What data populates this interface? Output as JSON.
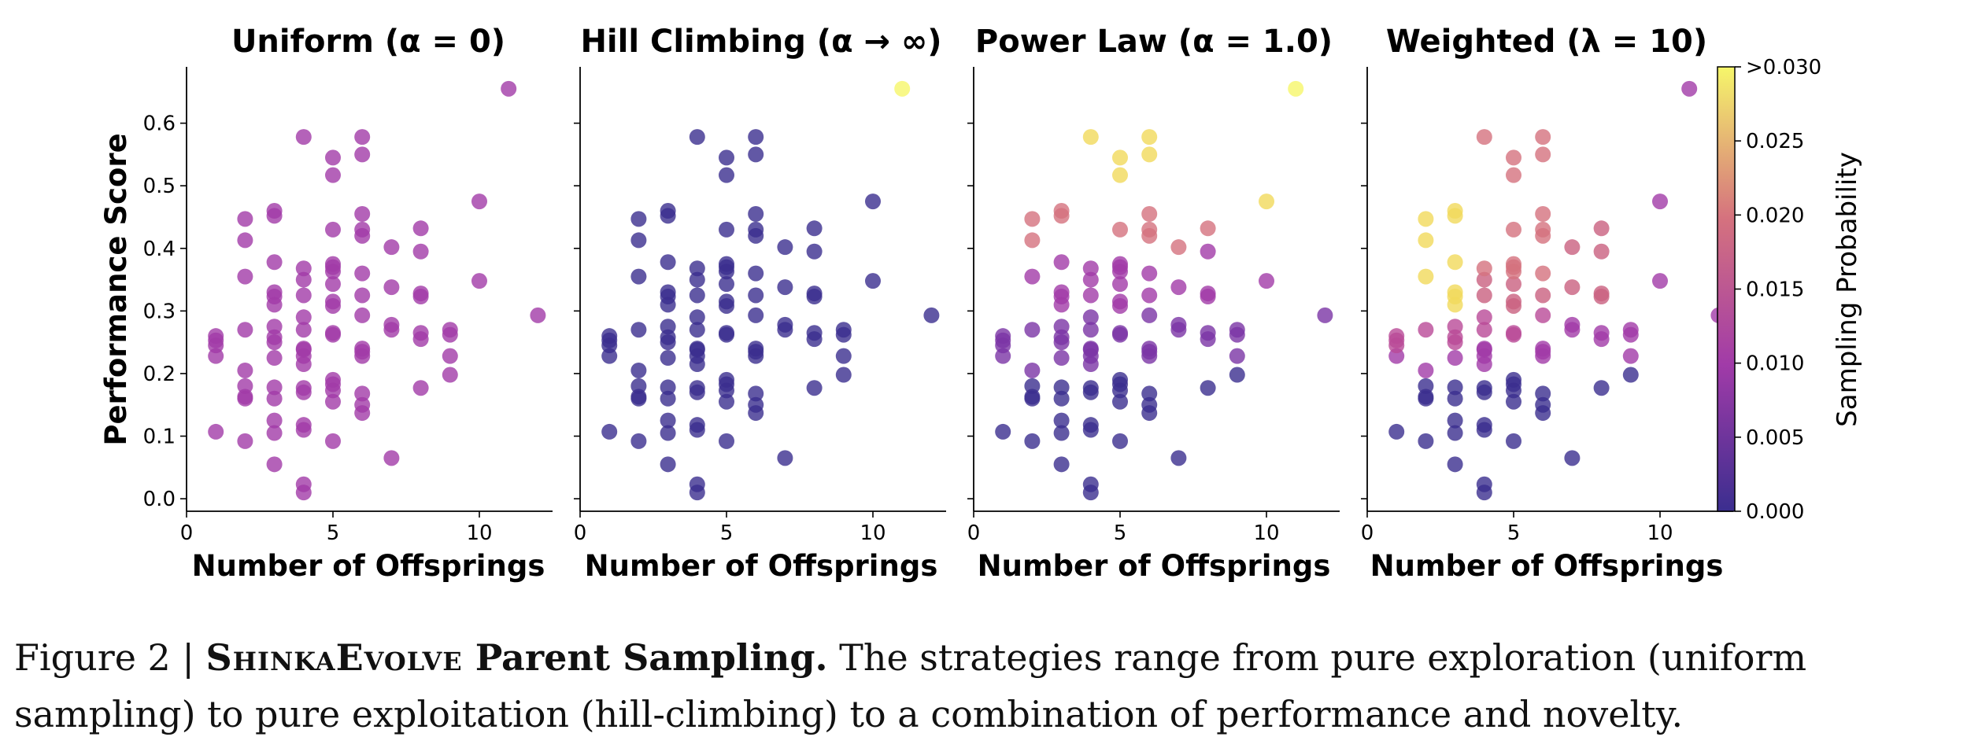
{
  "chart_data": {
    "type": "scatter",
    "shared_xlabel": "Number of Offsprings",
    "shared_ylabel": "Performance Score",
    "xlim": [
      0,
      12.5
    ],
    "ylim": [
      -0.02,
      0.69
    ],
    "xticks": [
      "0",
      "5",
      "10"
    ],
    "xtick_values": [
      0,
      5,
      10
    ],
    "yticks": [
      "0.0",
      "0.1",
      "0.2",
      "0.3",
      "0.4",
      "0.5",
      "0.6"
    ],
    "ytick_values": [
      0,
      0.1,
      0.2,
      0.3,
      0.4,
      0.5,
      0.6
    ],
    "grid": false,
    "colormap": "plasma",
    "colors": {
      "low": "#3b2e8f",
      "mid": "#a13ba8",
      "mid_high": "#d5727e",
      "high": "#f1d95b",
      "top": "#f6f66a"
    },
    "points": [
      {
        "x": 1,
        "y": 0.107
      },
      {
        "x": 1,
        "y": 0.228
      },
      {
        "x": 1,
        "y": 0.245
      },
      {
        "x": 1,
        "y": 0.253
      },
      {
        "x": 1,
        "y": 0.26
      },
      {
        "x": 2,
        "y": 0.092
      },
      {
        "x": 2,
        "y": 0.16
      },
      {
        "x": 2,
        "y": 0.163
      },
      {
        "x": 2,
        "y": 0.18
      },
      {
        "x": 2,
        "y": 0.205
      },
      {
        "x": 2,
        "y": 0.27
      },
      {
        "x": 2,
        "y": 0.355
      },
      {
        "x": 2,
        "y": 0.413
      },
      {
        "x": 2,
        "y": 0.447
      },
      {
        "x": 3,
        "y": 0.055
      },
      {
        "x": 3,
        "y": 0.105
      },
      {
        "x": 3,
        "y": 0.125
      },
      {
        "x": 3,
        "y": 0.16
      },
      {
        "x": 3,
        "y": 0.178
      },
      {
        "x": 3,
        "y": 0.225
      },
      {
        "x": 3,
        "y": 0.25
      },
      {
        "x": 3,
        "y": 0.258
      },
      {
        "x": 3,
        "y": 0.275
      },
      {
        "x": 3,
        "y": 0.31
      },
      {
        "x": 3,
        "y": 0.323
      },
      {
        "x": 3,
        "y": 0.33
      },
      {
        "x": 3,
        "y": 0.378
      },
      {
        "x": 3,
        "y": 0.452
      },
      {
        "x": 3,
        "y": 0.46
      },
      {
        "x": 4,
        "y": 0.01
      },
      {
        "x": 4,
        "y": 0.023
      },
      {
        "x": 4,
        "y": 0.11
      },
      {
        "x": 4,
        "y": 0.118
      },
      {
        "x": 4,
        "y": 0.17
      },
      {
        "x": 4,
        "y": 0.177
      },
      {
        "x": 4,
        "y": 0.215
      },
      {
        "x": 4,
        "y": 0.228
      },
      {
        "x": 4,
        "y": 0.238
      },
      {
        "x": 4,
        "y": 0.24
      },
      {
        "x": 4,
        "y": 0.27
      },
      {
        "x": 4,
        "y": 0.29
      },
      {
        "x": 4,
        "y": 0.325
      },
      {
        "x": 4,
        "y": 0.35
      },
      {
        "x": 4,
        "y": 0.368
      },
      {
        "x": 4,
        "y": 0.578
      },
      {
        "x": 5,
        "y": 0.092
      },
      {
        "x": 5,
        "y": 0.155
      },
      {
        "x": 5,
        "y": 0.173
      },
      {
        "x": 5,
        "y": 0.183
      },
      {
        "x": 5,
        "y": 0.19
      },
      {
        "x": 5,
        "y": 0.262
      },
      {
        "x": 5,
        "y": 0.265
      },
      {
        "x": 5,
        "y": 0.308
      },
      {
        "x": 5,
        "y": 0.315
      },
      {
        "x": 5,
        "y": 0.343
      },
      {
        "x": 5,
        "y": 0.363
      },
      {
        "x": 5,
        "y": 0.37
      },
      {
        "x": 5,
        "y": 0.375
      },
      {
        "x": 5,
        "y": 0.43
      },
      {
        "x": 5,
        "y": 0.517
      },
      {
        "x": 5,
        "y": 0.545
      },
      {
        "x": 6,
        "y": 0.137
      },
      {
        "x": 6,
        "y": 0.15
      },
      {
        "x": 6,
        "y": 0.168
      },
      {
        "x": 6,
        "y": 0.228
      },
      {
        "x": 6,
        "y": 0.235
      },
      {
        "x": 6,
        "y": 0.24
      },
      {
        "x": 6,
        "y": 0.293
      },
      {
        "x": 6,
        "y": 0.325
      },
      {
        "x": 6,
        "y": 0.36
      },
      {
        "x": 6,
        "y": 0.42
      },
      {
        "x": 6,
        "y": 0.43
      },
      {
        "x": 6,
        "y": 0.455
      },
      {
        "x": 6,
        "y": 0.55
      },
      {
        "x": 6,
        "y": 0.578
      },
      {
        "x": 7,
        "y": 0.065
      },
      {
        "x": 7,
        "y": 0.27
      },
      {
        "x": 7,
        "y": 0.278
      },
      {
        "x": 7,
        "y": 0.338
      },
      {
        "x": 7,
        "y": 0.402
      },
      {
        "x": 8,
        "y": 0.177
      },
      {
        "x": 8,
        "y": 0.255
      },
      {
        "x": 8,
        "y": 0.265
      },
      {
        "x": 8,
        "y": 0.323
      },
      {
        "x": 8,
        "y": 0.328
      },
      {
        "x": 8,
        "y": 0.395
      },
      {
        "x": 8,
        "y": 0.432
      },
      {
        "x": 9,
        "y": 0.198
      },
      {
        "x": 9,
        "y": 0.228
      },
      {
        "x": 9,
        "y": 0.262
      },
      {
        "x": 9,
        "y": 0.27
      },
      {
        "x": 10,
        "y": 0.348
      },
      {
        "x": 10,
        "y": 0.475
      },
      {
        "x": 11,
        "y": 0.655
      },
      {
        "x": 12,
        "y": 0.293
      }
    ],
    "panels": [
      {
        "title": "Uniform (α = 0)",
        "x_axis_label": "Number of Offsprings",
        "mode": "uniform"
      },
      {
        "title": "Hill Climbing (α → ∞)",
        "x_axis_label": "Number of Offsprings",
        "mode": "hill"
      },
      {
        "title": "Power Law (α = 1.0)",
        "x_axis_label": "Number of Offsprings",
        "mode": "power"
      },
      {
        "title": "Weighted (λ = 10)",
        "x_axis_label": "Number of Offsprings",
        "mode": "weighted"
      }
    ],
    "colorbar": {
      "label": "Sampling Probability",
      "ticks": [
        "0.000",
        "0.005",
        "0.010",
        "0.015",
        "0.020",
        "0.025",
        ">0.030"
      ],
      "tick_values": [
        0,
        0.005,
        0.01,
        0.015,
        0.02,
        0.025,
        0.03
      ],
      "range": [
        0,
        0.03
      ]
    }
  },
  "caption": {
    "figure_number": "Figure 2 | ",
    "brand": "ShinkaEvolve",
    "title": " Parent Sampling.",
    "body": " The strategies range from pure exploration (uniform sampling) to pure exploitation (hill-climbing) to a combination of performance and novelty."
  }
}
